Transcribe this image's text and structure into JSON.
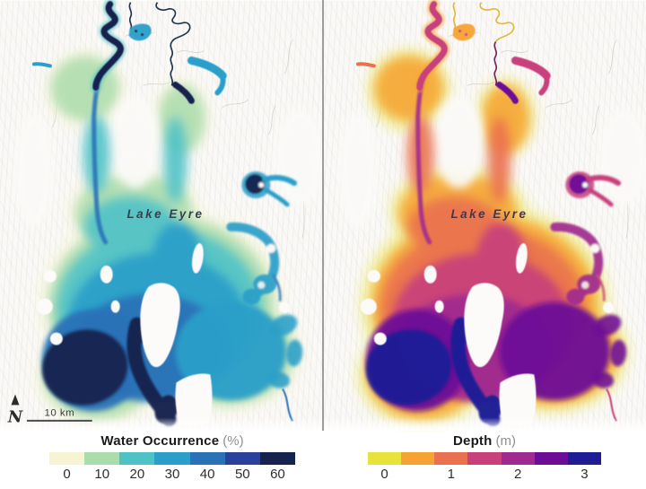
{
  "figure": {
    "type": "satellite-map-comparison",
    "subject": "Lake Eyre flood mapping"
  },
  "maps": {
    "label": "Lake Eyre",
    "left": {
      "variable": "water-occurrence",
      "label_color": "#35424f"
    },
    "right": {
      "variable": "depth",
      "label_color": "#4a3548"
    }
  },
  "compass": {
    "north_label": "N",
    "scale_label": "10 km"
  },
  "rivers": {
    "left": {
      "upper": "#24364d",
      "lower": "#24364d"
    },
    "right": {
      "upper": "#e2b93c",
      "lower": "#7c2066"
    }
  },
  "legends": [
    {
      "title": "Water Occurrence",
      "unit": "(%)",
      "ticks": [
        "0",
        "10",
        "20",
        "30",
        "40",
        "50",
        "60"
      ],
      "colors": [
        "#f6f4d3",
        "#abdcab",
        "#4fc2c7",
        "#2b9fc9",
        "#2a72b8",
        "#2b3f9c",
        "#15234e"
      ]
    },
    {
      "title": "Depth",
      "unit": "(m)",
      "ticks": [
        "0",
        "1",
        "2",
        "3"
      ],
      "colors": [
        "#e8e33b",
        "#f7a333",
        "#ea7150",
        "#c8417b",
        "#a02a90",
        "#6d0d97",
        "#1f1d96"
      ]
    }
  ]
}
